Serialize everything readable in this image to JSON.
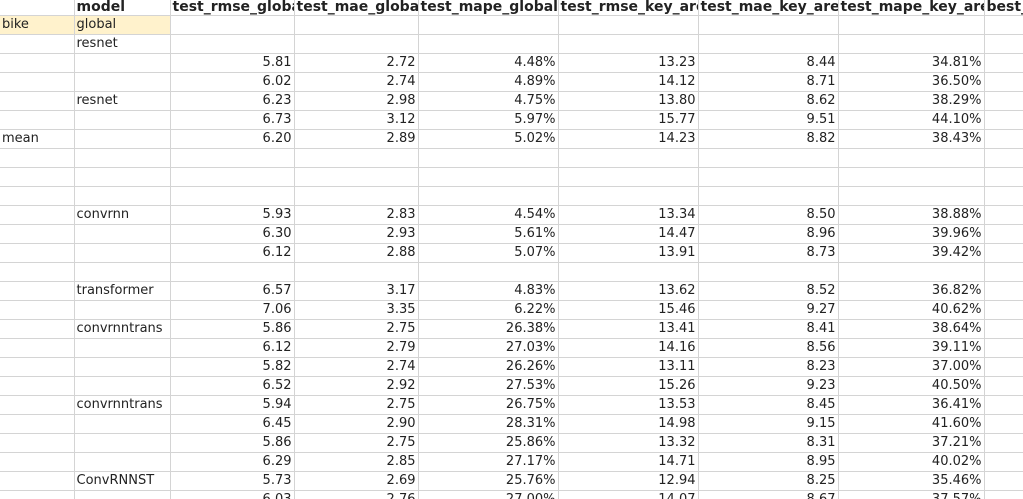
{
  "columns": [
    "",
    "model",
    "test_rmse_global",
    "test_mae_global",
    "test_mape_global",
    "test_rmse_key_area",
    "test_mae_key_area",
    "test_mape_key_area",
    "best_e"
  ],
  "rows": [
    [
      "bike",
      "global",
      "",
      "",
      "",
      "",
      "",
      "",
      ""
    ],
    [
      "",
      "resnet",
      "",
      "",
      "",
      "",
      "",
      "",
      ""
    ],
    [
      "",
      "",
      "5.81",
      "2.72",
      "4.48%",
      "13.23",
      "8.44",
      "34.81%",
      ""
    ],
    [
      "",
      "",
      "6.02",
      "2.74",
      "4.89%",
      "14.12",
      "8.71",
      "36.50%",
      ""
    ],
    [
      "",
      "resnet",
      "6.23",
      "2.98",
      "4.75%",
      "13.80",
      "8.62",
      "38.29%",
      ""
    ],
    [
      "",
      "",
      "6.73",
      "3.12",
      "5.97%",
      "15.77",
      "9.51",
      "44.10%",
      ""
    ],
    [
      "mean",
      "",
      "6.20",
      "2.89",
      "5.02%",
      "14.23",
      "8.82",
      "38.43%",
      ""
    ],
    [
      "",
      "",
      "",
      "",
      "",
      "",
      "",
      "",
      ""
    ],
    [
      "",
      "",
      "",
      "",
      "",
      "",
      "",
      "",
      ""
    ],
    [
      "",
      "",
      "",
      "",
      "",
      "",
      "",
      "",
      ""
    ],
    [
      "",
      "convrnn",
      "5.93",
      "2.83",
      "4.54%",
      "13.34",
      "8.50",
      "38.88%",
      ""
    ],
    [
      "",
      "",
      "6.30",
      "2.93",
      "5.61%",
      "14.47",
      "8.96",
      "39.96%",
      ""
    ],
    [
      "",
      "",
      "6.12",
      "2.88",
      "5.07%",
      "13.91",
      "8.73",
      "39.42%",
      ""
    ],
    [
      "",
      "",
      "",
      "",
      "",
      "",
      "",
      "",
      ""
    ],
    [
      "",
      "transformer",
      "6.57",
      "3.17",
      "4.83%",
      "13.62",
      "8.52",
      "36.82%",
      ""
    ],
    [
      "",
      "",
      "7.06",
      "3.35",
      "6.22%",
      "15.46",
      "9.27",
      "40.62%",
      ""
    ],
    [
      "",
      "convrnntrans",
      "5.86",
      "2.75",
      "26.38%",
      "13.41",
      "8.41",
      "38.64%",
      ""
    ],
    [
      "",
      "",
      "6.12",
      "2.79",
      "27.03%",
      "14.16",
      "8.56",
      "39.11%",
      ""
    ],
    [
      "",
      "",
      "5.82",
      "2.74",
      "26.26%",
      "13.11",
      "8.23",
      "37.00%",
      ""
    ],
    [
      "",
      "",
      "6.52",
      "2.92",
      "27.53%",
      "15.26",
      "9.23",
      "40.50%",
      ""
    ],
    [
      "",
      "convrnntrans",
      "5.94",
      "2.75",
      "26.75%",
      "13.53",
      "8.45",
      "36.41%",
      ""
    ],
    [
      "",
      "",
      "6.45",
      "2.90",
      "28.31%",
      "14.98",
      "9.15",
      "41.60%",
      ""
    ],
    [
      "",
      "",
      "5.86",
      "2.75",
      "25.86%",
      "13.32",
      "8.31",
      "37.21%",
      ""
    ],
    [
      "",
      "",
      "6.29",
      "2.85",
      "27.17%",
      "14.71",
      "8.95",
      "40.02%",
      ""
    ],
    [
      "",
      "ConvRNNST",
      "5.73",
      "2.69",
      "25.76%",
      "12.94",
      "8.25",
      "35.46%",
      ""
    ],
    [
      "",
      "",
      "6.03",
      "2.76",
      "27.00%",
      "14.07",
      "8.67",
      "37.57%",
      ""
    ]
  ],
  "colors": {
    "highlight": "#fff2cc",
    "gridline": "#d4d4d4"
  }
}
